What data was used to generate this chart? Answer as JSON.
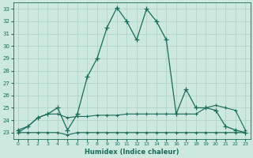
{
  "xlabel": "Humidex (Indice chaleur)",
  "bg_color": "#cce8df",
  "grid_color": "#aacfc5",
  "line_color": "#1a6b5a",
  "xlim": [
    -0.5,
    23.5
  ],
  "ylim": [
    22.5,
    33.5
  ],
  "yticks": [
    23,
    24,
    25,
    26,
    27,
    28,
    29,
    30,
    31,
    32,
    33
  ],
  "xticks": [
    0,
    1,
    2,
    3,
    4,
    5,
    6,
    7,
    8,
    9,
    10,
    11,
    12,
    13,
    14,
    15,
    16,
    17,
    18,
    19,
    20,
    21,
    22,
    23
  ],
  "curve1_x": [
    0,
    1,
    2,
    3,
    4,
    5,
    6,
    7,
    8,
    9,
    10,
    11,
    12,
    13,
    14,
    15,
    16,
    17,
    18,
    19,
    20,
    21,
    22,
    23
  ],
  "curve1_y": [
    23.2,
    23.5,
    24.2,
    24.5,
    25.0,
    23.2,
    24.5,
    27.5,
    29.0,
    31.5,
    33.1,
    32.0,
    30.5,
    33.0,
    32.0,
    30.5,
    24.5,
    26.5,
    25.0,
    25.0,
    24.8,
    23.5,
    23.2,
    23.0
  ],
  "curve2_x": [
    0,
    1,
    2,
    3,
    4,
    5,
    6,
    7,
    8,
    9,
    10,
    11,
    12,
    13,
    14,
    15,
    16,
    17,
    18,
    19,
    20,
    21,
    22,
    23
  ],
  "curve2_y": [
    23.0,
    23.5,
    24.2,
    24.5,
    24.5,
    24.2,
    24.3,
    24.3,
    24.4,
    24.4,
    24.4,
    24.5,
    24.5,
    24.5,
    24.5,
    24.5,
    24.5,
    24.5,
    24.5,
    25.0,
    25.2,
    25.0,
    24.8,
    23.2
  ],
  "curve3_x": [
    0,
    1,
    2,
    3,
    4,
    5,
    6,
    7,
    8,
    9,
    10,
    11,
    12,
    13,
    14,
    15,
    16,
    17,
    18,
    19,
    20,
    21,
    22,
    23
  ],
  "curve3_y": [
    23.0,
    23.0,
    23.0,
    23.0,
    23.0,
    22.8,
    23.0,
    23.0,
    23.0,
    23.0,
    23.0,
    23.0,
    23.0,
    23.0,
    23.0,
    23.0,
    23.0,
    23.0,
    23.0,
    23.0,
    23.0,
    23.0,
    23.0,
    23.0
  ]
}
